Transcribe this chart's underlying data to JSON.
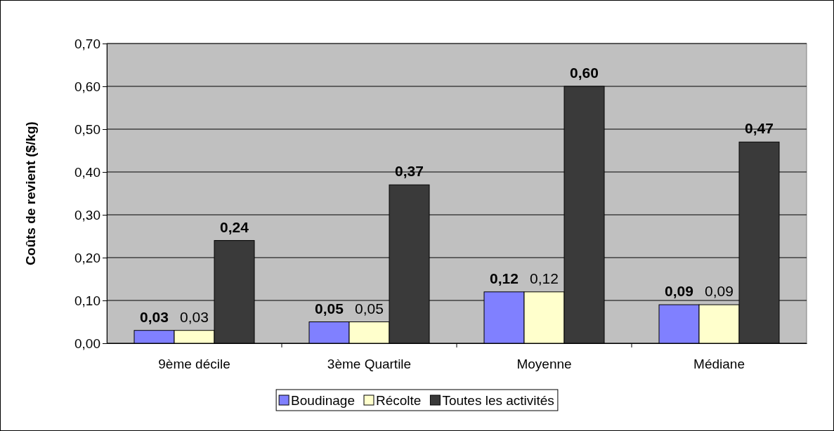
{
  "chart_data": {
    "type": "bar",
    "ylabel": "Coûts de revient ($/kg)",
    "categories": [
      "9ème décile",
      "3ème Quartile",
      "Moyenne",
      "Médiane"
    ],
    "series": [
      {
        "name": "Boudinage",
        "color": "#8080ff",
        "values": [
          0.03,
          0.05,
          0.12,
          0.09
        ],
        "value_labels": [
          "0,03",
          "0,05",
          "0,12",
          "0,09"
        ]
      },
      {
        "name": "Récolte",
        "color": "#ffffcc",
        "values": [
          0.03,
          0.05,
          0.12,
          0.09
        ],
        "value_labels": [
          "0,03",
          "0,05",
          "0,12",
          "0,09"
        ]
      },
      {
        "name": "Toutes les activités",
        "color": "#3a3a3a",
        "values": [
          0.24,
          0.37,
          0.6,
          0.47
        ],
        "value_labels": [
          "0,24",
          "0,37",
          "0,60",
          "0,47"
        ]
      }
    ],
    "ylim": [
      0,
      0.7
    ],
    "yticks": [
      {
        "value": 0,
        "label": "0,00"
      },
      {
        "value": 0.1,
        "label": "0,10"
      },
      {
        "value": 0.2,
        "label": "0,20"
      },
      {
        "value": 0.3,
        "label": "0,30"
      },
      {
        "value": 0.4,
        "label": "0,40"
      },
      {
        "value": 0.5,
        "label": "0,50"
      },
      {
        "value": 0.6,
        "label": "0,60"
      },
      {
        "value": 0.7,
        "label": "0,70"
      }
    ],
    "grid": "y",
    "legend": "bottom"
  }
}
